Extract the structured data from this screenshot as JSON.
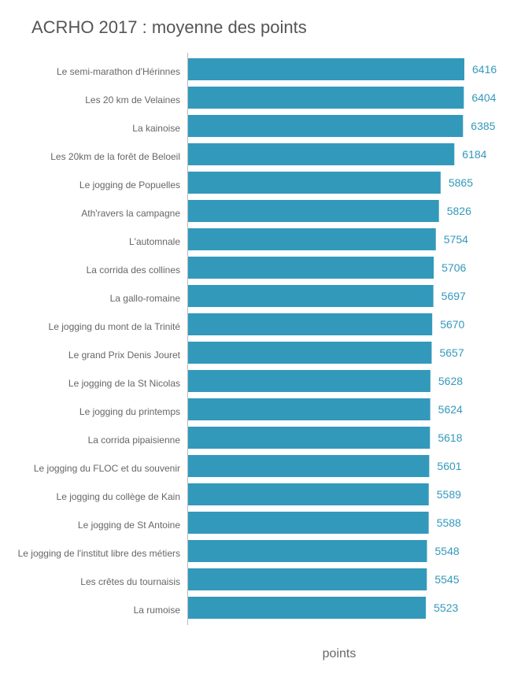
{
  "chart_data": {
    "type": "bar",
    "orientation": "horizontal",
    "title": "ACRHO 2017 : moyenne des points",
    "xlabel": "points",
    "ylabel": "",
    "bar_color": "#3399bb",
    "label_color": "#3399bb",
    "grid": false,
    "legend": "none",
    "categories": [
      "Le semi-marathon d'Hérinnes",
      "Les 20 km de Velaines",
      "La kainoise",
      "Les 20km de la forêt de Beloeil",
      "Le jogging de Popuelles",
      "Ath'ravers la campagne",
      "L'automnale",
      "La corrida des collines",
      "La gallo-romaine",
      "Le jogging du mont de la Trinité",
      "Le grand Prix Denis Jouret",
      "Le jogging de la St Nicolas",
      "Le jogging du printemps",
      "La corrida pipaisienne",
      "Le jogging du FLOC et du souvenir",
      "Le jogging du collège de Kain",
      "Le jogging de St Antoine",
      "Le jogging de l'institut libre des métiers",
      "Les crêtes du tournaisis",
      "La rumoise"
    ],
    "values": [
      6416,
      6404,
      6385,
      6184,
      5865,
      5826,
      5754,
      5706,
      5697,
      5670,
      5657,
      5628,
      5624,
      5618,
      5601,
      5589,
      5588,
      5548,
      5545,
      5523
    ]
  }
}
